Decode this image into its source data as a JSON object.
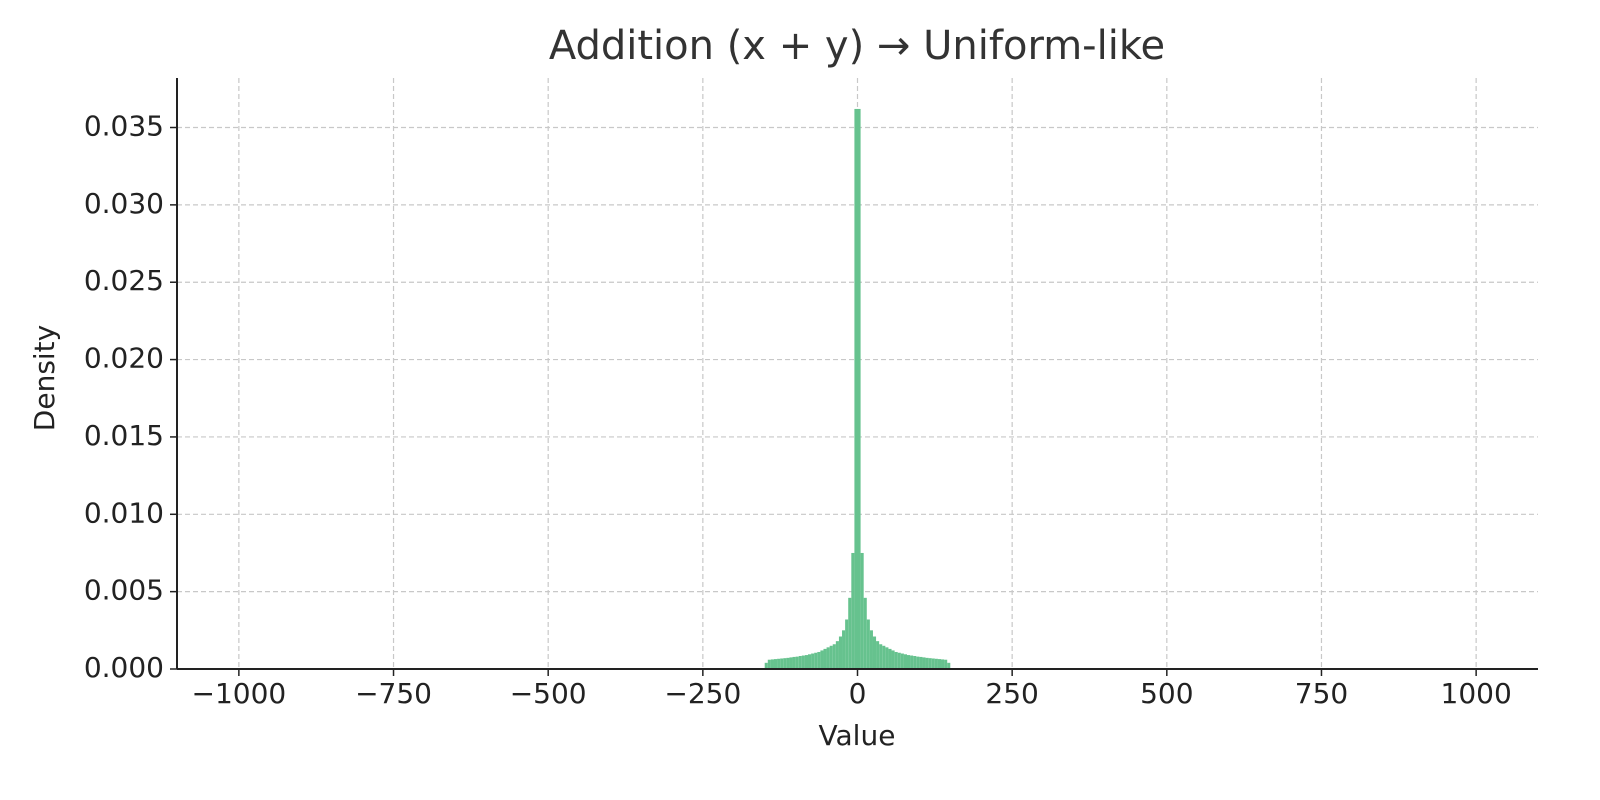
{
  "chart_data": {
    "type": "histogram",
    "title": "Addition (x + y) → Uniform-like",
    "x_label": "Value",
    "y_label": "Density",
    "color": "#66c28e",
    "grid": true,
    "xlim": [
      -1100,
      1100
    ],
    "ylim": [
      0,
      0.0382
    ],
    "xticks": [
      {
        "value": -1000,
        "label": "−1000"
      },
      {
        "value": -750,
        "label": "−750"
      },
      {
        "value": -500,
        "label": "−500"
      },
      {
        "value": -250,
        "label": "−250"
      },
      0,
      250,
      500,
      750,
      1000
    ],
    "yticks": [
      {
        "value": 0,
        "label": "0.000"
      },
      {
        "value": 0.005,
        "label": "0.005"
      },
      {
        "value": 0.01,
        "label": "0.010"
      },
      {
        "value": 0.015,
        "label": "0.015"
      },
      {
        "value": 0.02,
        "label": "0.020"
      },
      {
        "value": 0.025,
        "label": "0.025"
      },
      {
        "value": 0.03,
        "label": "0.030"
      },
      {
        "value": 0.035,
        "label": "0.035"
      }
    ],
    "bins": [
      -150,
      -145,
      -140,
      -135,
      -130,
      -125,
      -120,
      -115,
      -110,
      -105,
      -100,
      -95,
      -90,
      -85,
      -80,
      -75,
      -70,
      -65,
      -60,
      -55,
      -50,
      -45,
      -40,
      -35,
      -30,
      -25,
      -20,
      -15,
      -10,
      -5,
      0,
      5,
      10,
      15,
      20,
      25,
      30,
      35,
      40,
      45,
      50,
      55,
      60,
      65,
      70,
      75,
      80,
      85,
      90,
      95,
      100,
      105,
      110,
      115,
      120,
      125,
      130,
      135,
      140,
      145,
      150
    ],
    "counts": [
      0.0004,
      0.0006,
      0.00062,
      0.00064,
      0.00066,
      0.00068,
      0.0007,
      0.00072,
      0.00075,
      0.00078,
      0.0008,
      0.00084,
      0.00087,
      0.0009,
      0.00095,
      0.001,
      0.00105,
      0.0011,
      0.0012,
      0.0013,
      0.0014,
      0.0015,
      0.0016,
      0.0018,
      0.0021,
      0.0025,
      0.0032,
      0.0046,
      0.0075,
      0.0362,
      0.0362,
      0.0075,
      0.0046,
      0.0032,
      0.0025,
      0.0021,
      0.0018,
      0.0016,
      0.0015,
      0.0014,
      0.0013,
      0.0012,
      0.0011,
      0.00105,
      0.001,
      0.00095,
      0.0009,
      0.00087,
      0.00084,
      0.0008,
      0.00078,
      0.00075,
      0.00072,
      0.0007,
      0.00068,
      0.00066,
      0.00064,
      0.00062,
      0.0006,
      0.0004
    ]
  }
}
